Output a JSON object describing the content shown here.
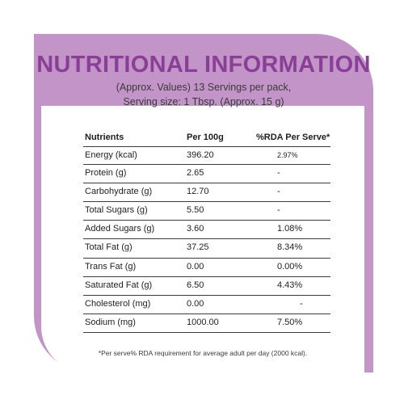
{
  "title": "NUTRITIONAL INFORMATION",
  "subtitle_line1": "(Approx. Values) 13 Servings per pack,",
  "subtitle_line2": "Serving size: 1 Tbsp. (Approx. 15 g)",
  "table": {
    "headers": [
      "Nutrients",
      "Per 100g",
      "%RDA Per Serve*"
    ],
    "rows": [
      {
        "nutrient": "Energy (kcal)",
        "per100g": "396.20",
        "rda": "2.97%"
      },
      {
        "nutrient": "Protein (g)",
        "per100g": "2.65",
        "rda": "-"
      },
      {
        "nutrient": "Carbohydrate (g)",
        "per100g": "12.70",
        "rda": "-"
      },
      {
        "nutrient": "Total Sugars (g)",
        "per100g": "5.50",
        "rda": "-"
      },
      {
        "nutrient": "Added Sugars (g)",
        "per100g": "3.60",
        "rda": "1.08%"
      },
      {
        "nutrient": "Total Fat (g)",
        "per100g": "37.25",
        "rda": "8.34%"
      },
      {
        "nutrient": "Trans Fat (g)",
        "per100g": "0.00",
        "rda": "0.00%"
      },
      {
        "nutrient": "Saturated Fat (g)",
        "per100g": "6.50",
        "rda": "4.43%"
      },
      {
        "nutrient": "Cholesterol (mg)",
        "per100g": "0.00",
        "rda": "-"
      },
      {
        "nutrient": "Sodium (mg)",
        "per100g": "1000.00",
        "rda": "7.50%"
      }
    ]
  },
  "footnote": "*Per serve% RDA requirement for average adult per day (2000 kcal).",
  "colors": {
    "panel": "#c394c8",
    "title": "#8a3f97"
  }
}
